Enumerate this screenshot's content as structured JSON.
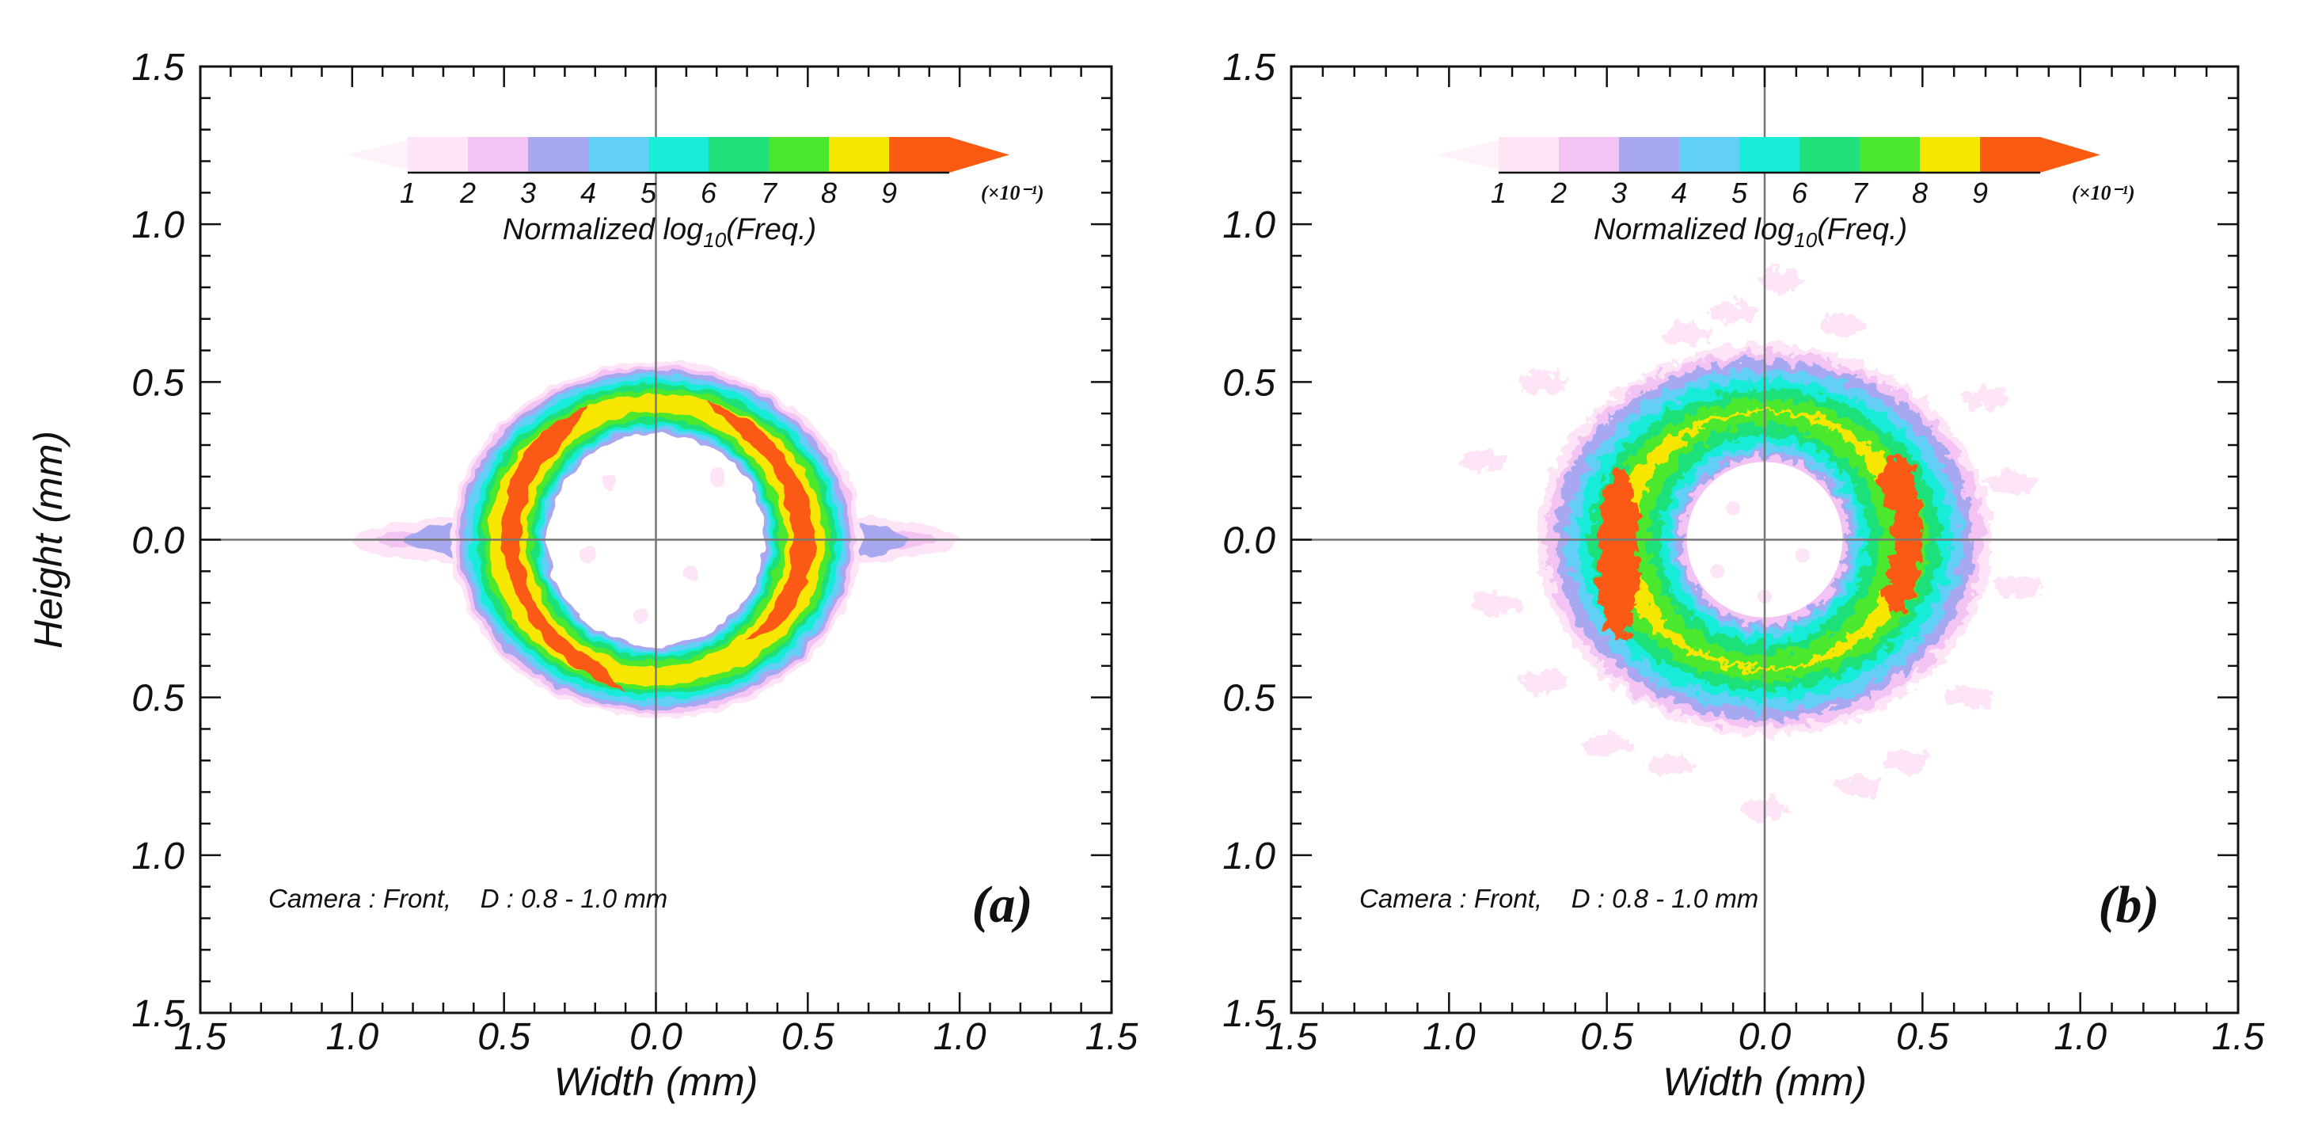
{
  "chart_data": [
    {
      "type": "heatmap",
      "panel_label": "(a)",
      "annotation": "Camera : Front,    D : 0.8 - 1.0 mm",
      "xlabel": "Width (mm)",
      "ylabel": "Height (mm)",
      "xlim": [
        -1.5,
        1.5
      ],
      "ylim": [
        -1.5,
        1.5
      ],
      "x_tick_labels": [
        "1.5",
        "1.0",
        "0.5",
        "0.0",
        "0.5",
        "1.0",
        "1.5"
      ],
      "y_tick_labels": [
        "1.5",
        "1.0",
        "0.5",
        "0.0",
        "0.5",
        "1.0",
        "1.5"
      ],
      "colorbar": {
        "title": "Normalized log10(Freq.)",
        "title_main": "Normalized log",
        "title_sub": "10",
        "title_end": "(Freq.)",
        "tick_labels": [
          "1",
          "2",
          "3",
          "4",
          "5",
          "6",
          "7",
          "8",
          "9"
        ],
        "multiplier": "(×10⁻¹)",
        "colors": [
          "#fde4f6",
          "#f3c3f3",
          "#a7a8ef",
          "#62cff6",
          "#19ecd8",
          "#1fe07a",
          "#4ce82f",
          "#f7e700",
          "#fb5a12"
        ]
      },
      "structure": {
        "description_levels": "elliptical ring; highest levels on left and right lobes",
        "ring_center": [
          0.0,
          0.0
        ],
        "outer_radius_x": 0.65,
        "outer_radius_y": 0.54,
        "inner_radius_x": 0.38,
        "inner_radius_y": 0.36,
        "horizontal_tail_extent": 1.0,
        "peak_level": 9
      },
      "grid": false,
      "crosshair_at_origin": true
    },
    {
      "type": "heatmap",
      "panel_label": "(b)",
      "annotation": "Camera : Front,    D : 0.8 - 1.0 mm",
      "xlabel": "Width (mm)",
      "ylabel": "",
      "xlim": [
        -1.5,
        1.5
      ],
      "ylim": [
        -1.5,
        1.5
      ],
      "x_tick_labels": [
        "1.5",
        "1.0",
        "0.5",
        "0.0",
        "0.5",
        "1.0",
        "1.5"
      ],
      "y_tick_labels": [
        "1.5",
        "1.0",
        "0.5",
        "0.0",
        "0.5",
        "1.0",
        "1.5"
      ],
      "colorbar": {
        "title": "Normalized log10(Freq.)",
        "title_main": "Normalized log",
        "title_sub": "10",
        "title_end": "(Freq.)",
        "tick_labels": [
          "1",
          "2",
          "3",
          "4",
          "5",
          "6",
          "7",
          "8",
          "9"
        ],
        "multiplier": "(×10⁻¹)",
        "colors": [
          "#fde4f6",
          "#f3c3f3",
          "#a7a8ef",
          "#62cff6",
          "#19ecd8",
          "#1fe07a",
          "#4ce82f",
          "#f7e700",
          "#fb5a12"
        ]
      },
      "structure": {
        "description_levels": "noisier elliptical ring with scattered speckle; peak patches on left and right",
        "ring_center": [
          0.0,
          0.0
        ],
        "outer_radius_x": 0.72,
        "outer_radius_y": 0.62,
        "inner_radius_x": 0.28,
        "inner_radius_y": 0.28,
        "peak_level": 9
      },
      "grid": false,
      "crosshair_at_origin": true
    }
  ]
}
